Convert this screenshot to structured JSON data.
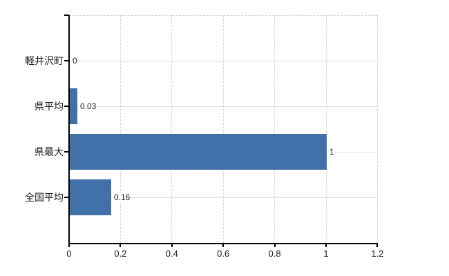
{
  "chart_data": {
    "type": "bar",
    "orientation": "horizontal",
    "title": "",
    "xlabel": "",
    "ylabel": "",
    "categories": [
      "軽井沢町",
      "県平均",
      "県最大",
      "全国平均"
    ],
    "values": [
      0,
      0.03,
      1,
      0.16
    ],
    "value_labels": [
      "0",
      "0.03",
      "1",
      "0.16"
    ],
    "xlim": [
      0,
      1.2
    ],
    "x_ticks": [
      0,
      0.2,
      0.4,
      0.6,
      0.8,
      1,
      1.2
    ],
    "x_tick_labels": [
      "0",
      "0.2",
      "0.4",
      "0.6",
      "0.8",
      "1",
      "1.2"
    ],
    "grid": true,
    "legend": false,
    "colors": {
      "bar": "#4270a8",
      "axis": "#000000",
      "gridline_solid": "#dbe0da",
      "gridline_dashed": "#d6d2d6",
      "text": "#1a1a1a",
      "background": "#ffffff"
    }
  }
}
